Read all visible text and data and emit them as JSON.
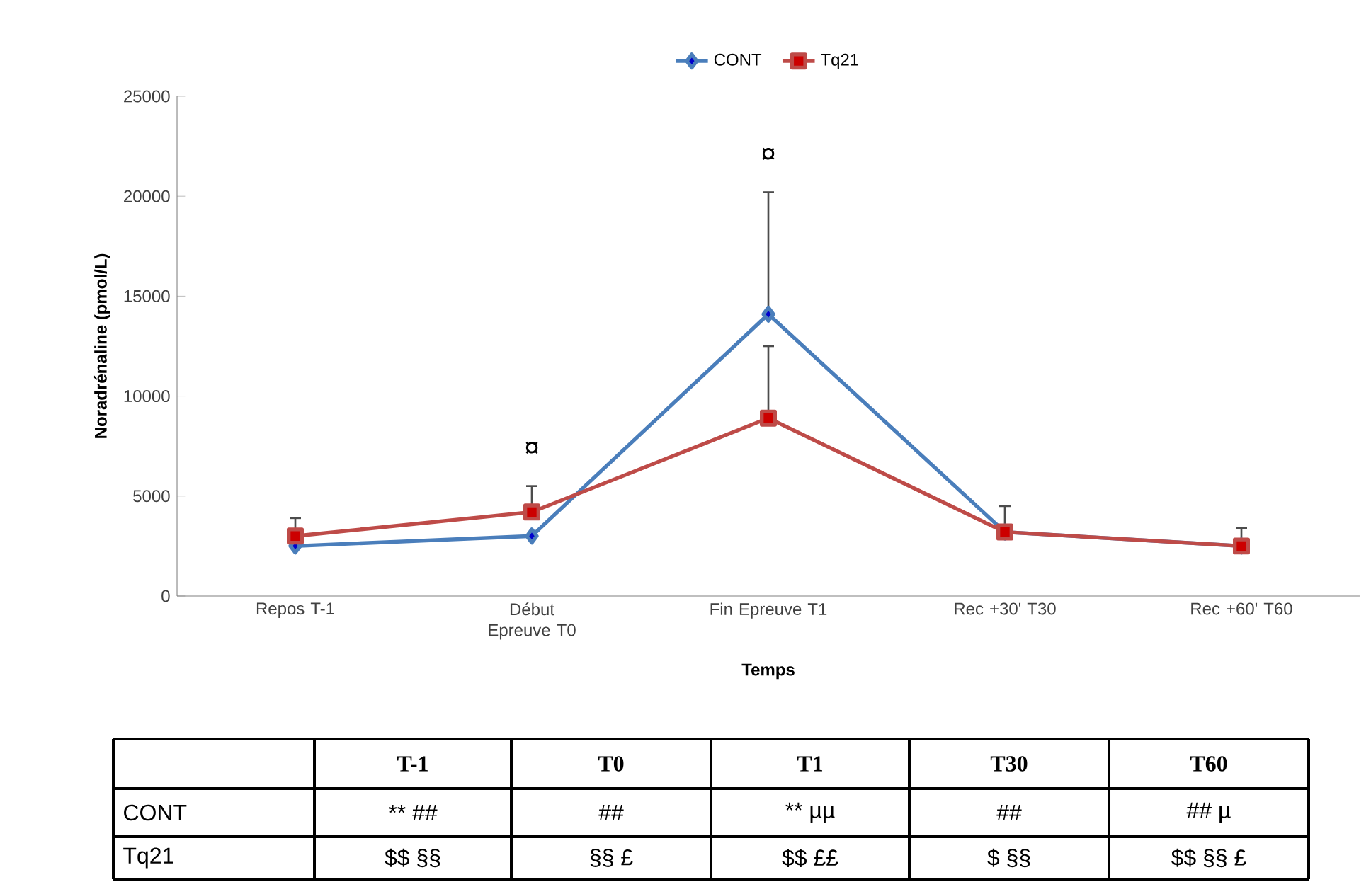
{
  "chart_data": {
    "type": "line",
    "xlabel": "Temps",
    "ylabel": "Noradrénaline (pmol/L)",
    "categories": [
      "Repos T-1",
      "Début Epreuve T0",
      "Fin Epreuve T1",
      "Rec +30' T30",
      "Rec +60' T60"
    ],
    "series": [
      {
        "name": "CONT",
        "color": "#4a7ebb",
        "marker": "diamond",
        "values": [
          2500,
          3000,
          14100,
          3200,
          2500
        ],
        "errors": [
          null,
          null,
          [
            14100,
            20200
          ],
          null,
          null
        ]
      },
      {
        "name": "Tq21",
        "color": "#be4b48",
        "marker": "square",
        "values": [
          3000,
          4200,
          8900,
          3200,
          2500
        ],
        "errors": [
          [
            3000,
            3900
          ],
          [
            4200,
            5500
          ],
          [
            8900,
            12500
          ],
          [
            3200,
            4500
          ],
          [
            2500,
            3400
          ]
        ]
      }
    ],
    "ylim": [
      0,
      25000
    ],
    "yticks": [
      0,
      5000,
      10000,
      15000,
      20000,
      25000
    ],
    "legend": "top",
    "grid": false,
    "annotations": [
      "¤",
      "¤",
      "T-1",
      "T0",
      "T1",
      "T30",
      "T60",
      "** ##",
      "##",
      "** µµ",
      "##",
      "## µ",
      "$$ §§",
      "§§ £",
      "$$ ££",
      "$ §§",
      "$$ §§ £"
    ]
  }
}
